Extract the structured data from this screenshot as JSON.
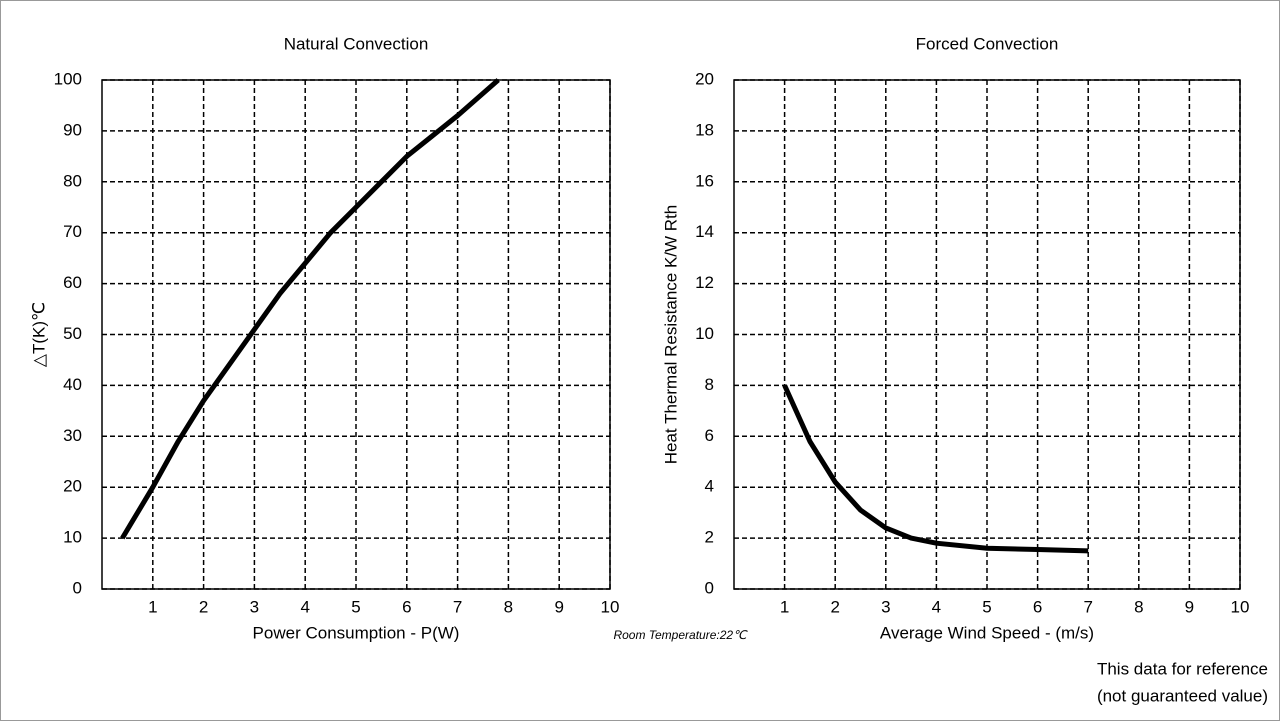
{
  "chart_data": [
    {
      "type": "line",
      "title": "Natural Convection",
      "xlabel": "Power Consumption - P(W)",
      "ylabel": "△T(K)℃",
      "x": [
        0.4,
        1,
        1.5,
        2,
        2.5,
        3,
        3.5,
        4,
        4.5,
        5,
        5.5,
        6,
        6.5,
        7,
        7.8
      ],
      "values": [
        10,
        20,
        29,
        37,
        44,
        51,
        58,
        64,
        70,
        75,
        80,
        85,
        89,
        93,
        100
      ],
      "color": "#000000",
      "xlim": [
        0,
        10
      ],
      "xticks": [
        1,
        2,
        3,
        4,
        5,
        6,
        7,
        8,
        9,
        10
      ],
      "ylim": [
        0,
        100
      ],
      "yticks": [
        0,
        10,
        20,
        30,
        40,
        50,
        60,
        70,
        80,
        90,
        100
      ],
      "grid": true
    },
    {
      "type": "line",
      "title": "Forced Convection",
      "xlabel": "Average Wind Speed - (m/s)",
      "ylabel": "Heat Thermal Resistance K/W Rth",
      "x": [
        1,
        1.5,
        2,
        2.5,
        3,
        3.5,
        4,
        5,
        6,
        7
      ],
      "values": [
        8,
        5.8,
        4.2,
        3.1,
        2.4,
        2.0,
        1.8,
        1.6,
        1.55,
        1.5
      ],
      "color": "#000000",
      "xlim": [
        0,
        10
      ],
      "xticks": [
        1,
        2,
        3,
        4,
        5,
        6,
        7,
        8,
        9,
        10
      ],
      "ylim": [
        0,
        20
      ],
      "yticks": [
        0,
        2,
        4,
        6,
        8,
        10,
        12,
        14,
        16,
        18,
        20
      ],
      "grid": true
    }
  ],
  "notes": {
    "room": "Room Temperature:22℃",
    "reference": [
      "This data for reference",
      "(not guaranteed value)"
    ]
  }
}
